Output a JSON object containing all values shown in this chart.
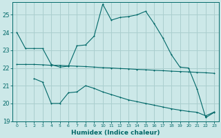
{
  "xlabel": "Humidex (Indice chaleur)",
  "bg_color": "#cce8e8",
  "grid_color": "#aacece",
  "line_color": "#006868",
  "xlim": [
    -0.5,
    23.5
  ],
  "ylim": [
    19,
    25.7
  ],
  "yticks": [
    19,
    20,
    21,
    22,
    23,
    24,
    25
  ],
  "xticks": [
    0,
    1,
    2,
    3,
    4,
    5,
    6,
    7,
    8,
    9,
    10,
    11,
    12,
    13,
    14,
    15,
    16,
    17,
    18,
    19,
    20,
    21,
    22,
    23
  ],
  "line1_x": [
    0,
    1,
    2,
    3,
    4,
    5,
    6,
    7,
    8,
    9,
    10,
    11,
    12,
    13,
    14,
    15,
    16,
    17,
    18,
    19,
    20,
    21,
    22,
    23
  ],
  "line1_y": [
    24.0,
    23.1,
    23.1,
    23.1,
    22.2,
    22.05,
    22.1,
    23.25,
    23.3,
    23.8,
    25.6,
    24.7,
    24.85,
    24.9,
    25.0,
    25.2,
    24.5,
    23.7,
    22.75,
    22.05,
    22.0,
    20.8,
    19.2,
    19.5
  ],
  "line2_x": [
    0,
    1,
    2,
    3,
    4,
    5,
    6,
    7,
    8,
    9,
    10,
    11,
    12,
    13,
    14,
    15,
    16,
    17,
    18,
    19,
    20,
    21,
    22,
    23
  ],
  "line2_y": [
    22.2,
    22.2,
    22.2,
    22.18,
    22.15,
    22.15,
    22.12,
    22.1,
    22.08,
    22.05,
    22.02,
    22.0,
    21.97,
    21.95,
    21.92,
    21.9,
    21.87,
    21.85,
    21.82,
    21.8,
    21.78,
    21.75,
    21.73,
    21.7
  ],
  "line3_x": [
    2,
    3,
    4,
    5,
    6,
    7,
    8,
    9,
    10,
    11,
    12,
    13,
    14,
    15,
    16,
    17,
    18,
    19,
    20,
    21,
    22,
    23
  ],
  "line3_y": [
    21.4,
    21.2,
    20.0,
    20.0,
    20.6,
    20.65,
    21.0,
    20.85,
    20.65,
    20.5,
    20.35,
    20.2,
    20.1,
    20.0,
    19.9,
    19.8,
    19.7,
    19.62,
    19.55,
    19.5,
    19.3,
    19.52
  ]
}
